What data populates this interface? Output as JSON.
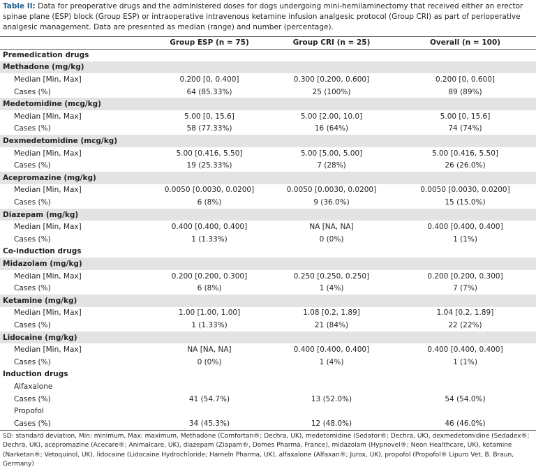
{
  "caption": {
    "label": "Table II:",
    "text": "Data for preoperative drugs and the administered doses for dogs undergoing mini-hemilaminectomy that received either an erector spinae plane (ESP) block (Group ESP) or intraoperative intravenous ketamine infusion analgesic protocol (Group CRI) as part of perioperative analgesic management. Data are presented as median (range) and number (percentage)."
  },
  "table": {
    "headers": [
      "Group ESP (n = 75)",
      "Group CRI (n = 25)",
      "Overall (n = 100)"
    ],
    "sections": [
      {
        "title": "Premedication drugs",
        "groups": [
          {
            "heading": "Methadone (mg/kg)",
            "rows": [
              [
                "Median [Min, Max]",
                "0.200 [0, 0.400]",
                "0.300 [0.200, 0.600]",
                "0.200 [0, 0.600]"
              ],
              [
                "Cases (%)",
                "64 (85.33%)",
                "25 (100%)",
                "89 (89%)"
              ]
            ]
          },
          {
            "heading": "Medetomidine (mcg/kg)",
            "rows": [
              [
                "Median [Min, Max]",
                "5.00 [0, 15.6]",
                "5.00 [2.00, 10.0]",
                "5.00 [0, 15.6]"
              ],
              [
                "Cases (%)",
                "58 (77.33%)",
                "16 (64%)",
                "74 (74%)"
              ]
            ]
          },
          {
            "heading": "Dexmedetomidine (mcg/kg)",
            "rows": [
              [
                "Median [Min, Max]",
                "5.00 [0.416, 5.50]",
                "5.00 [5.00, 5.00]",
                "5.00 [0.416, 5.50]"
              ],
              [
                "Cases (%)",
                "19 (25.33%)",
                "7 (28%)",
                "26 (26.0%)"
              ]
            ]
          },
          {
            "heading": "Acepromazine (mg/kg)",
            "rows": [
              [
                "Median [Min, Max]",
                "0.0050 [0.0030, 0.0200]",
                "0.0050 [0.0030, 0.0200]",
                "0.0050 [0.0030, 0.0200]"
              ],
              [
                "Cases (%)",
                "6 (8%)",
                "9 (36.0%)",
                "15 (15.0%)"
              ]
            ]
          },
          {
            "heading": "Diazepam (mg/kg)",
            "rows": [
              [
                "Median [Min, Max]",
                "0.400 [0.400, 0.400]",
                "NA [NA, NA]",
                "0.400 [0.400, 0.400]"
              ],
              [
                "Cases (%)",
                "1 (1.33%)",
                "0 (0%)",
                "1 (1%)"
              ]
            ]
          }
        ]
      },
      {
        "title": "Co-induction drugs",
        "groups": [
          {
            "heading": "Midazolam (mg/kg)",
            "rows": [
              [
                "Median [Min, Max]",
                "0.200 [0.200, 0.300]",
                "0.250 [0.250, 0.250]",
                "0.200 [0.200, 0.300]"
              ],
              [
                "Cases (%)",
                "6 (8%)",
                "1 (4%)",
                "7 (7%)"
              ]
            ]
          },
          {
            "heading": "Ketamine (mg/kg)",
            "rows": [
              [
                "Median [Min, Max]",
                "1.00 [1.00, 1.00]",
                "1.08 [0.2, 1.89]",
                "1.04 [0.2, 1.89]"
              ],
              [
                "Cases (%)",
                "1 (1.33%)",
                "21 (84%)",
                "22 (22%)"
              ]
            ]
          },
          {
            "heading": "Lidocaine (mg/kg)",
            "rows": [
              [
                "Median [Min, Max]",
                "NA [NA, NA]",
                "0.400 [0.400, 0.400]",
                "0.400 [0.400, 0.400]"
              ],
              [
                "Cases (%)",
                "0 (0%)",
                "1 (4%)",
                "1 (1%)"
              ]
            ]
          }
        ]
      },
      {
        "title": "Induction drugs",
        "groups": [
          {
            "label": "Alfaxalone",
            "rows": [
              [
                "Cases (%)",
                "41 (54.7%)",
                "13 (52.0%)",
                "54 (54.0%)"
              ]
            ]
          },
          {
            "label": "Propofol",
            "rows": [
              [
                "Cases (%)",
                "34 (45.3%)",
                "12 (48.0%)",
                "46 (46.0%)"
              ]
            ]
          }
        ]
      }
    ]
  },
  "footnote": "SD: standard deviation, Min: minimum, Max: maximum, Methadone (Comfortan®; Dechra, UK), medetomidine (Sedator®; Dechra, UK), dexmedetomidine (Sedadex®; Dechra, UK), acepromazine (Acecare®; Animalcare, UK), diazepam (Ziapam®, Domes Pharma, France), midazolam (Hypnovel®; Neon Healthcare, UK), ketamine (Narketan®; Vetoquinol, UK), lidocaine (Lidocaine Hydrochloride; Hameln Pharma, UK), alfaxalone (Alfaxan®; Jurox, UK), propofol (Propofol® Lipuro Vet, B. Braun, Germany)"
}
